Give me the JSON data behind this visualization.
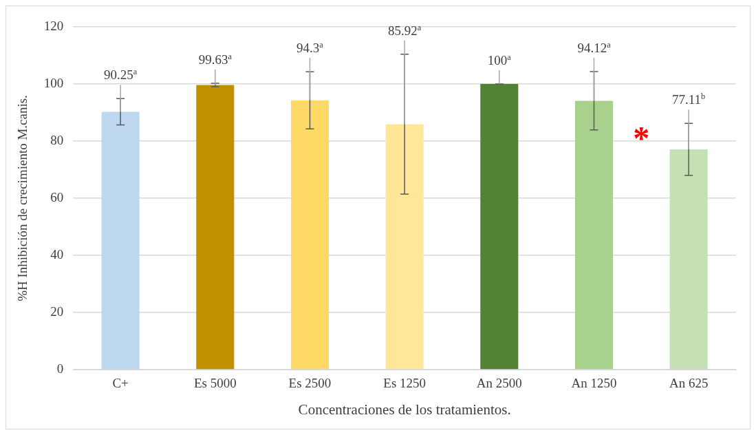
{
  "chart_data": {
    "type": "bar",
    "xlabel": "Concentraciones de los tratamientos.",
    "ylabel": "%H Inhibición de crecimiento M.canis.",
    "categories": [
      "C+",
      "Es 5000",
      "Es 2500",
      "Es 1250",
      "An 2500",
      "An 1250",
      "An 625"
    ],
    "values": [
      90.25,
      99.63,
      94.3,
      85.92,
      100,
      94.12,
      77.11
    ],
    "colors": [
      "#bdd7ee",
      "#bf9000",
      "#ffd966",
      "#ffe699",
      "#548235",
      "#a9d18e",
      "#c5e0b4"
    ],
    "errors": [
      4.6,
      0.6,
      10,
      24.5,
      0,
      10.2,
      9.1
    ],
    "value_labels": [
      "90.25$^{a}$",
      "99.63$^{a}$",
      "94.3$^{a}$",
      "85.92$^{a}$",
      "100$^{a}$",
      "94.12$^{a}$",
      "77.11$^{b}$"
    ],
    "annotations": [
      "*"
    ],
    "ylim": [
      0,
      120
    ],
    "yticks": [
      0,
      20,
      40,
      60,
      80,
      100,
      120
    ],
    "grid": "y",
    "legend": false
  }
}
